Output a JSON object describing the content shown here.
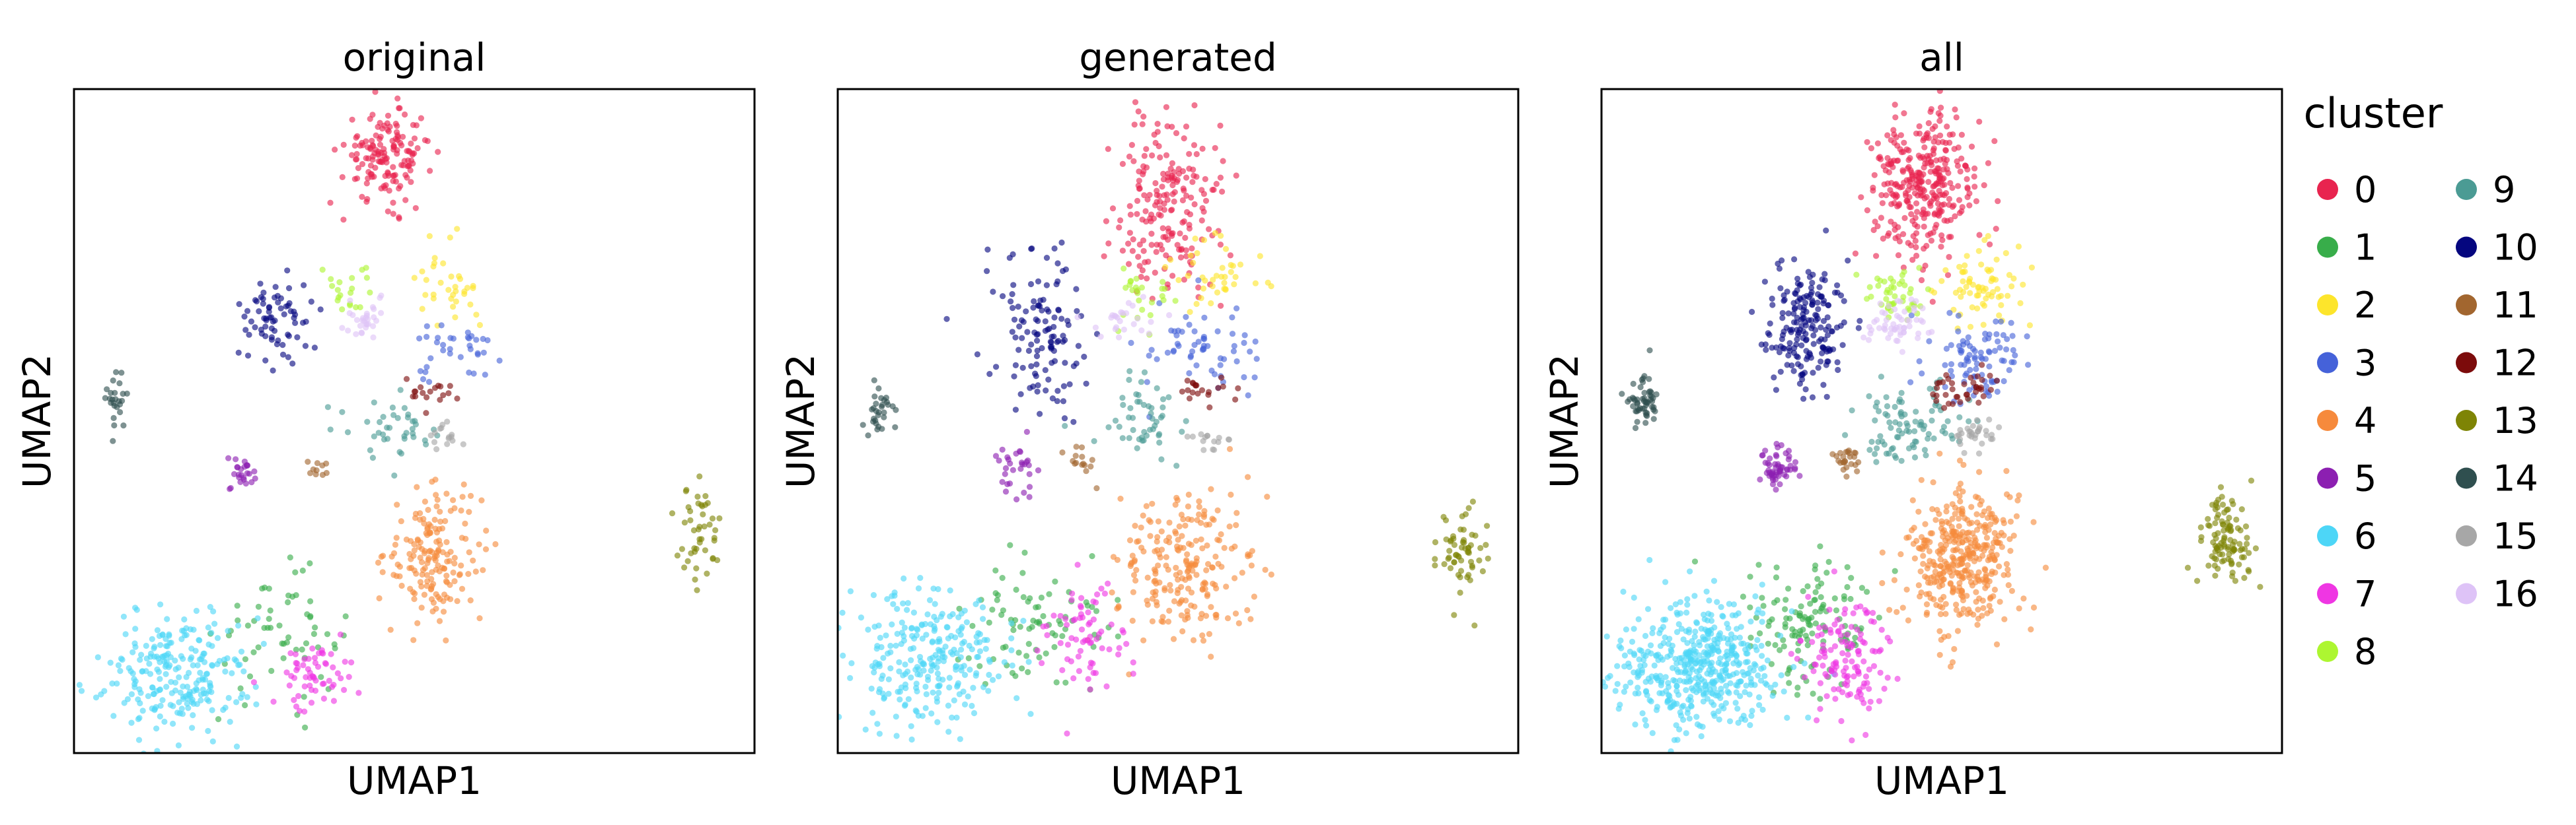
{
  "figure": {
    "legend": {
      "title": "cluster",
      "placement": "right",
      "entries": [
        {
          "label": "0",
          "color": "#e8244f"
        },
        {
          "label": "1",
          "color": "#38ad4a"
        },
        {
          "label": "2",
          "color": "#fde52b"
        },
        {
          "label": "3",
          "color": "#4562d9"
        },
        {
          "label": "4",
          "color": "#f68a3c"
        },
        {
          "label": "5",
          "color": "#8c1fb1"
        },
        {
          "label": "6",
          "color": "#4dd6f7"
        },
        {
          "label": "7",
          "color": "#ef36e3"
        },
        {
          "label": "8",
          "color": "#adf631"
        },
        {
          "label": "9",
          "color": "#4b9b94"
        },
        {
          "label": "10",
          "color": "#05067f"
        },
        {
          "label": "11",
          "color": "#a2662f"
        },
        {
          "label": "12",
          "color": "#7c0b0b"
        },
        {
          "label": "13",
          "color": "#7e8405"
        },
        {
          "label": "14",
          "color": "#2f4f4f"
        },
        {
          "label": "15",
          "color": "#a7a7a7"
        },
        {
          "label": "16",
          "color": "#dec3f7"
        }
      ]
    }
  },
  "chart_data": [
    {
      "type": "scatter",
      "title": "original",
      "xlabel": "UMAP1",
      "ylabel": "UMAP2",
      "xlim": [
        0,
        100
      ],
      "ylim": [
        0,
        100
      ],
      "grid": false,
      "clusters": [
        {
          "label": "0",
          "center": [
            46,
            90
          ],
          "spread": [
            3.2,
            3.5
          ],
          "n": 150
        },
        {
          "label": "1",
          "center": [
            30,
            18
          ],
          "spread": [
            4.5,
            4.5
          ],
          "n": 60
        },
        {
          "label": "2",
          "center": [
            55,
            70
          ],
          "spread": [
            3.5,
            3.5
          ],
          "n": 35
        },
        {
          "label": "3",
          "center": [
            56,
            60
          ],
          "spread": [
            3.0,
            2.0
          ],
          "n": 35
        },
        {
          "label": "4",
          "center": [
            53,
            30
          ],
          "spread": [
            3.5,
            5.0
          ],
          "n": 170
        },
        {
          "label": "5",
          "center": [
            25,
            42
          ],
          "spread": [
            1.2,
            1.3
          ],
          "n": 25
        },
        {
          "label": "6",
          "center": [
            15,
            12
          ],
          "spread": [
            5.5,
            5.0
          ],
          "n": 240
        },
        {
          "label": "7",
          "center": [
            36,
            12
          ],
          "spread": [
            3.0,
            3.0
          ],
          "n": 60
        },
        {
          "label": "8",
          "center": [
            41,
            70
          ],
          "spread": [
            1.5,
            1.8
          ],
          "n": 20
        },
        {
          "label": "9",
          "center": [
            46,
            48
          ],
          "spread": [
            3.5,
            2.5
          ],
          "n": 40
        },
        {
          "label": "10",
          "center": [
            30,
            66
          ],
          "spread": [
            2.5,
            3.5
          ],
          "n": 70
        },
        {
          "label": "11",
          "center": [
            36,
            43
          ],
          "spread": [
            0.8,
            0.8
          ],
          "n": 10
        },
        {
          "label": "12",
          "center": [
            53,
            54
          ],
          "spread": [
            2.5,
            1.5
          ],
          "n": 18
        },
        {
          "label": "13",
          "center": [
            92,
            33
          ],
          "spread": [
            1.5,
            3.5
          ],
          "n": 45
        },
        {
          "label": "14",
          "center": [
            6,
            53
          ],
          "spread": [
            1.0,
            2.0
          ],
          "n": 25
        },
        {
          "label": "15",
          "center": [
            55,
            48
          ],
          "spread": [
            1.5,
            1.0
          ],
          "n": 15
        },
        {
          "label": "16",
          "center": [
            43,
            65
          ],
          "spread": [
            2.0,
            1.5
          ],
          "n": 30
        }
      ]
    },
    {
      "type": "scatter",
      "title": "generated",
      "xlabel": "UMAP1",
      "ylabel": "UMAP2",
      "xlim": [
        0,
        100
      ],
      "ylim": [
        0,
        100
      ],
      "grid": false,
      "clusters": [
        {
          "label": "0",
          "center": [
            49,
            82
          ],
          "spread": [
            4.0,
            7.5
          ],
          "n": 200
        },
        {
          "label": "1",
          "center": [
            29,
            20
          ],
          "spread": [
            5.0,
            5.0
          ],
          "n": 80
        },
        {
          "label": "2",
          "center": [
            56,
            72
          ],
          "spread": [
            3.5,
            3.0
          ],
          "n": 40
        },
        {
          "label": "3",
          "center": [
            53,
            60
          ],
          "spread": [
            4.5,
            3.5
          ],
          "n": 60
        },
        {
          "label": "4",
          "center": [
            51,
            28
          ],
          "spread": [
            5.0,
            5.5
          ],
          "n": 220
        },
        {
          "label": "5",
          "center": [
            26,
            43
          ],
          "spread": [
            1.5,
            1.8
          ],
          "n": 30
        },
        {
          "label": "6",
          "center": [
            13,
            14
          ],
          "spread": [
            6.0,
            5.0
          ],
          "n": 260
        },
        {
          "label": "7",
          "center": [
            36,
            17
          ],
          "spread": [
            3.0,
            5.0
          ],
          "n": 70
        },
        {
          "label": "8",
          "center": [
            45,
            68
          ],
          "spread": [
            2.5,
            2.5
          ],
          "n": 25
        },
        {
          "label": "9",
          "center": [
            45,
            50
          ],
          "spread": [
            3.5,
            3.0
          ],
          "n": 50
        },
        {
          "label": "10",
          "center": [
            30,
            63
          ],
          "spread": [
            3.5,
            6.0
          ],
          "n": 120
        },
        {
          "label": "11",
          "center": [
            36,
            44
          ],
          "spread": [
            1.0,
            1.5
          ],
          "n": 15
        },
        {
          "label": "12",
          "center": [
            53,
            55
          ],
          "spread": [
            2.0,
            1.5
          ],
          "n": 20
        },
        {
          "label": "13",
          "center": [
            92,
            31
          ],
          "spread": [
            2.0,
            3.5
          ],
          "n": 60
        },
        {
          "label": "14",
          "center": [
            6,
            52
          ],
          "spread": [
            1.0,
            2.5
          ],
          "n": 30
        },
        {
          "label": "15",
          "center": [
            55,
            47
          ],
          "spread": [
            1.5,
            1.2
          ],
          "n": 15
        },
        {
          "label": "16",
          "center": [
            43,
            65
          ],
          "spread": [
            2.5,
            1.5
          ],
          "n": 25
        }
      ]
    },
    {
      "type": "scatter",
      "title": "all",
      "xlabel": "UMAP1",
      "ylabel": "UMAP2",
      "xlim": [
        0,
        100
      ],
      "ylim": [
        0,
        100
      ],
      "grid": false,
      "clusters": [
        {
          "label": "0",
          "center": [
            47,
            85
          ],
          "spread": [
            3.8,
            6.0
          ],
          "n": 330
        },
        {
          "label": "1",
          "center": [
            30,
            20
          ],
          "spread": [
            5.0,
            5.0
          ],
          "n": 130
        },
        {
          "label": "2",
          "center": [
            56,
            71
          ],
          "spread": [
            3.5,
            3.2
          ],
          "n": 70
        },
        {
          "label": "3",
          "center": [
            55,
            60
          ],
          "spread": [
            3.8,
            3.0
          ],
          "n": 90
        },
        {
          "label": "4",
          "center": [
            53,
            29
          ],
          "spread": [
            4.5,
            5.5
          ],
          "n": 380
        },
        {
          "label": "5",
          "center": [
            26,
            43
          ],
          "spread": [
            1.4,
            1.6
          ],
          "n": 55
        },
        {
          "label": "6",
          "center": [
            14,
            13
          ],
          "spread": [
            6.0,
            5.0
          ],
          "n": 480
        },
        {
          "label": "7",
          "center": [
            36,
            15
          ],
          "spread": [
            3.0,
            4.5
          ],
          "n": 130
        },
        {
          "label": "8",
          "center": [
            43,
            69
          ],
          "spread": [
            2.0,
            2.2
          ],
          "n": 45
        },
        {
          "label": "9",
          "center": [
            45,
            49
          ],
          "spread": [
            3.5,
            3.0
          ],
          "n": 90
        },
        {
          "label": "10",
          "center": [
            30,
            64
          ],
          "spread": [
            3.2,
            5.0
          ],
          "n": 190
        },
        {
          "label": "11",
          "center": [
            36,
            44
          ],
          "spread": [
            1.0,
            1.2
          ],
          "n": 25
        },
        {
          "label": "12",
          "center": [
            53,
            55
          ],
          "spread": [
            2.2,
            1.5
          ],
          "n": 38
        },
        {
          "label": "13",
          "center": [
            92,
            32
          ],
          "spread": [
            1.8,
            3.5
          ],
          "n": 105
        },
        {
          "label": "14",
          "center": [
            6,
            53
          ],
          "spread": [
            1.0,
            2.2
          ],
          "n": 55
        },
        {
          "label": "15",
          "center": [
            55,
            48
          ],
          "spread": [
            1.5,
            1.1
          ],
          "n": 30
        },
        {
          "label": "16",
          "center": [
            43,
            65
          ],
          "spread": [
            2.2,
            1.5
          ],
          "n": 55
        }
      ]
    }
  ]
}
